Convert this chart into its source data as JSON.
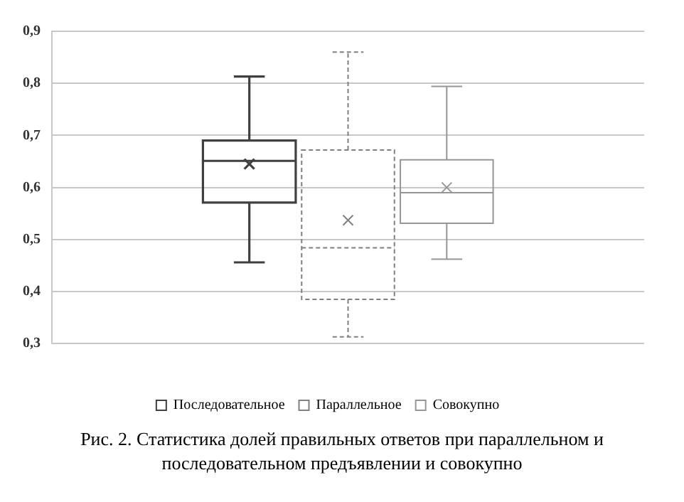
{
  "chart_data": {
    "type": "box",
    "title": "Рис. 2. Статистика долей правильных ответов при параллельном и последовательном предъявлении и совокупно",
    "categories": [
      null
    ],
    "series": [
      {
        "name": "Последовательное",
        "color": "#404040",
        "boxes": [
          {
            "low": 0.456,
            "q1": 0.571,
            "median": 0.651,
            "q3": 0.69,
            "high": 0.813,
            "mean": 0.645
          }
        ]
      },
      {
        "name": "Параллельное",
        "color": "#808080",
        "line_style": "dashed",
        "boxes": [
          {
            "low": 0.313,
            "q1": 0.385,
            "median": 0.484,
            "q3": 0.672,
            "high": 0.86,
            "mean": 0.537
          }
        ]
      },
      {
        "name": "Совокупно",
        "color": "#969696",
        "boxes": [
          {
            "low": 0.462,
            "q1": 0.531,
            "median": 0.59,
            "q3": 0.653,
            "high": 0.794,
            "mean": 0.6
          }
        ]
      }
    ],
    "ylim": [
      0.3,
      0.9
    ],
    "yticks": [
      {
        "value": 0.3,
        "label": "0,3"
      },
      {
        "value": 0.4,
        "label": "0,4"
      },
      {
        "value": 0.5,
        "label": "0,5"
      },
      {
        "value": 0.6,
        "label": "0,6"
      },
      {
        "value": 0.7,
        "label": "0,7"
      },
      {
        "value": 0.8,
        "label": "0,8"
      },
      {
        "value": 0.9,
        "label": "0,9"
      }
    ],
    "grid": "y",
    "legend": "bottom"
  }
}
